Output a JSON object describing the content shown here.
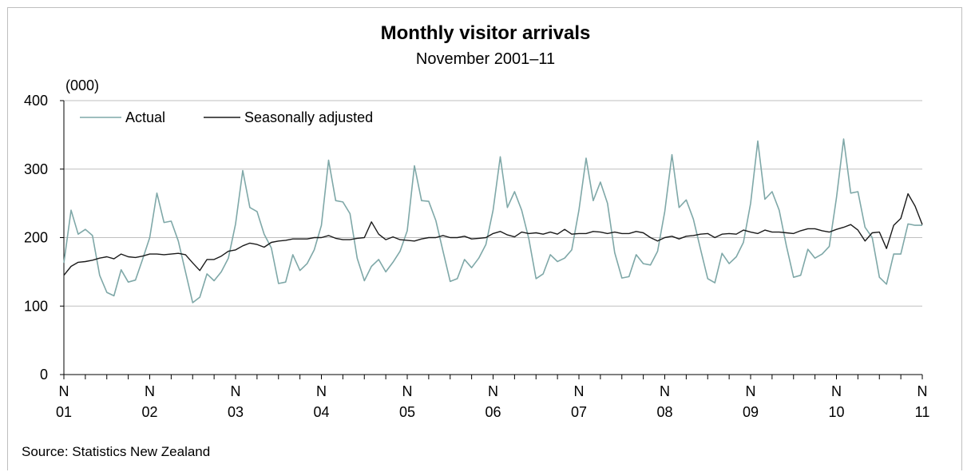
{
  "chart_data": {
    "type": "line",
    "title": "Monthly visitor arrivals",
    "subtitle": "November  2001–11",
    "unit_label": "(000)",
    "source": "Source: Statistics New Zealand",
    "ylim": [
      0,
      400
    ],
    "yticks": [
      0,
      100,
      200,
      300,
      400
    ],
    "grid": true,
    "legend_position": "top-left",
    "x_tick_labels": [
      {
        "month": "N",
        "year": "01"
      },
      {
        "month": "N",
        "year": "02"
      },
      {
        "month": "N",
        "year": "03"
      },
      {
        "month": "N",
        "year": "04"
      },
      {
        "month": "N",
        "year": "05"
      },
      {
        "month": "N",
        "year": "06"
      },
      {
        "month": "N",
        "year": "07"
      },
      {
        "month": "N",
        "year": "08"
      },
      {
        "month": "N",
        "year": "09"
      },
      {
        "month": "N",
        "year": "10"
      },
      {
        "month": "N",
        "year": "11"
      }
    ],
    "x_start": "2001-11",
    "x_end": "2011-11",
    "series": [
      {
        "name": "Actual",
        "color": "#7fa8a8",
        "values": [
          163,
          240,
          205,
          212,
          203,
          145,
          120,
          115,
          153,
          135,
          138,
          168,
          200,
          265,
          222,
          224,
          195,
          150,
          105,
          113,
          147,
          137,
          150,
          170,
          220,
          298,
          244,
          238,
          205,
          185,
          133,
          135,
          175,
          152,
          162,
          182,
          218,
          313,
          254,
          252,
          235,
          170,
          137,
          158,
          168,
          150,
          164,
          180,
          210,
          305,
          254,
          253,
          225,
          180,
          136,
          140,
          168,
          156,
          170,
          190,
          240,
          318,
          244,
          267,
          240,
          198,
          140,
          147,
          175,
          165,
          170,
          182,
          240,
          316,
          254,
          281,
          250,
          178,
          141,
          143,
          175,
          162,
          160,
          180,
          238,
          321,
          244,
          255,
          227,
          183,
          140,
          134,
          177,
          162,
          172,
          193,
          250,
          341,
          256,
          267,
          240,
          188,
          142,
          145,
          183,
          170,
          176,
          187,
          258,
          344,
          265,
          267,
          215,
          200,
          142,
          132,
          176,
          176,
          220,
          218,
          218
        ]
      },
      {
        "name": "Seasonally adjusted",
        "color": "#1a1a1a",
        "values": [
          145,
          158,
          164,
          165,
          167,
          170,
          172,
          169,
          176,
          172,
          171,
          173,
          176,
          176,
          175,
          176,
          177,
          175,
          163,
          152,
          168,
          168,
          173,
          180,
          182,
          188,
          192,
          190,
          186,
          193,
          195,
          196,
          198,
          198,
          198,
          200,
          200,
          203,
          199,
          197,
          197,
          199,
          200,
          223,
          205,
          197,
          201,
          197,
          196,
          195,
          198,
          200,
          200,
          203,
          200,
          200,
          202,
          198,
          199,
          200,
          206,
          209,
          204,
          201,
          208,
          206,
          207,
          205,
          208,
          205,
          212,
          205,
          206,
          206,
          209,
          208,
          206,
          208,
          206,
          206,
          209,
          207,
          200,
          195,
          200,
          202,
          198,
          202,
          203,
          205,
          206,
          200,
          205,
          206,
          205,
          211,
          208,
          206,
          211,
          208,
          208,
          207,
          206,
          210,
          213,
          213,
          210,
          208,
          212,
          215,
          219,
          211,
          195,
          207,
          208,
          184,
          218,
          228,
          264,
          246,
          219
        ]
      }
    ]
  }
}
